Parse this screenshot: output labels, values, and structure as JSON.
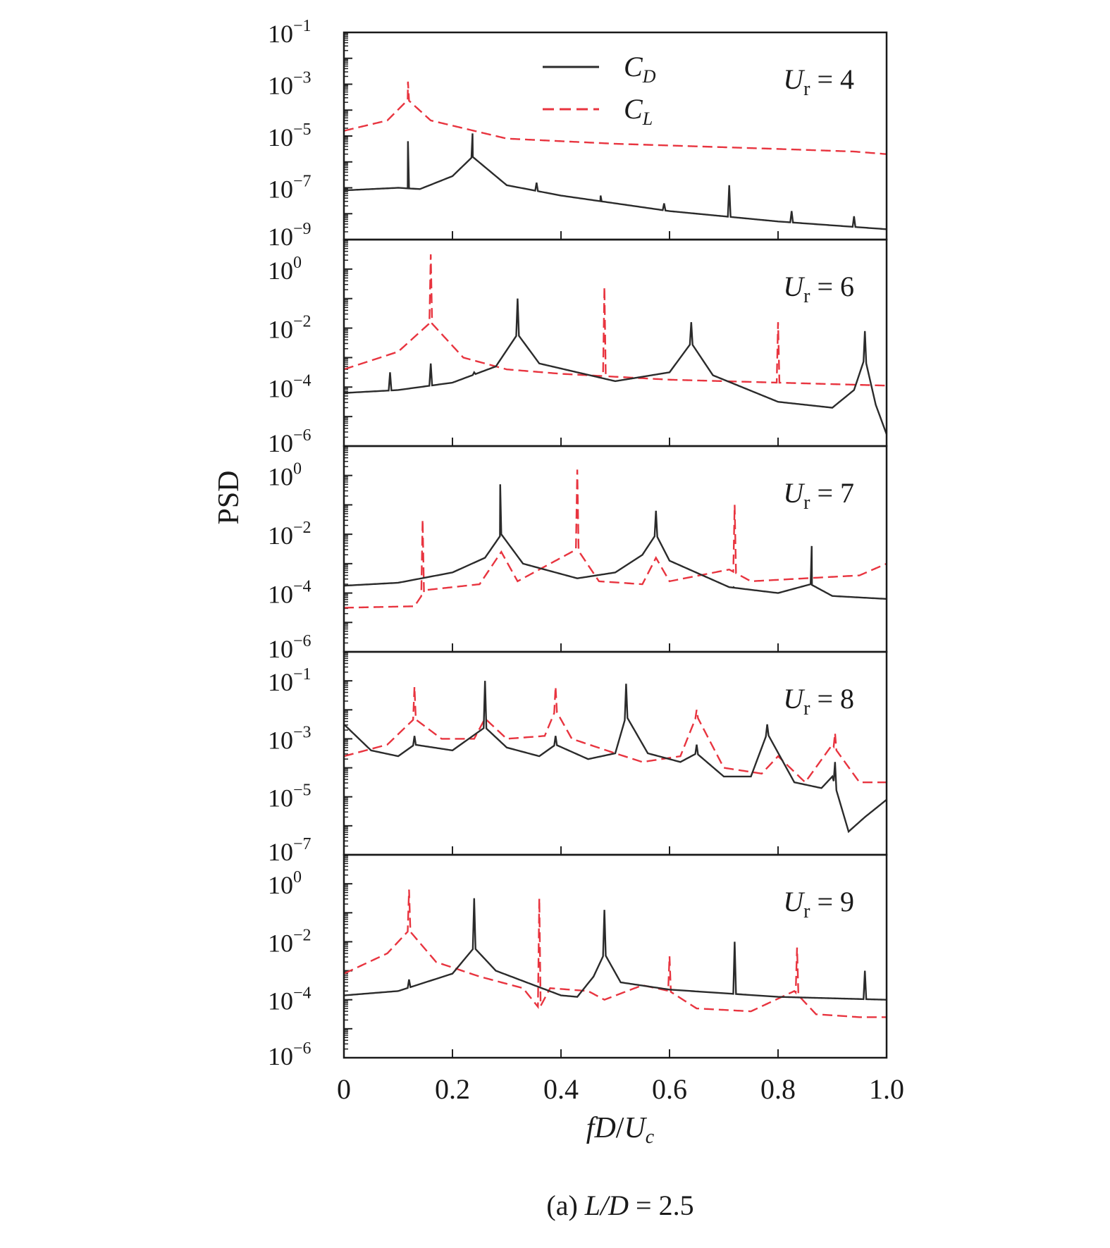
{
  "chart_data": {
    "type": "line",
    "caption_prefix": "(a) ",
    "caption_var": "L/D",
    "caption_value": " = 2.5",
    "ylabel": "PSD",
    "xlabel": {
      "f": "f",
      "D": "D",
      "slash": "/",
      "U": "U",
      "sub": "c"
    },
    "xlim": [
      0,
      1.0
    ],
    "x_ticks": [
      0,
      0.2,
      0.4,
      0.6,
      0.8,
      1.0
    ],
    "x_tick_labels": [
      "0",
      "0.2",
      "0.4",
      "0.6",
      "0.8",
      "1.0"
    ],
    "legend": [
      {
        "main": "C",
        "sub": "D",
        "color": "#2b2b2b",
        "dash": false
      },
      {
        "main": "C",
        "sub": "L",
        "color": "#e8343f",
        "dash": true
      }
    ],
    "panels": [
      {
        "label_var": "U",
        "label_sub": "r",
        "label_value": " = 4",
        "ylim_exp": [
          -9,
          -1
        ],
        "y_ticks": [
          {
            "base": "10",
            "exp": "−1",
            "e": -1
          },
          {
            "base": "10",
            "exp": "−3",
            "e": -3
          },
          {
            "base": "10",
            "exp": "−5",
            "e": -5
          },
          {
            "base": "10",
            "exp": "−7",
            "e": -7
          },
          {
            "base": "10",
            "exp": "−9",
            "e": -9
          }
        ],
        "CD": {
          "base": [
            [
              0.0,
              -7.1
            ],
            [
              0.1,
              -7.0
            ],
            [
              0.14,
              -7.05
            ],
            [
              0.2,
              -6.55
            ],
            [
              0.237,
              -5.8
            ],
            [
              0.3,
              -6.9
            ],
            [
              0.4,
              -7.3
            ],
            [
              0.6,
              -7.9
            ],
            [
              0.8,
              -8.3
            ],
            [
              1.0,
              -8.6
            ]
          ],
          "peaks": [
            [
              0.118,
              -5.2
            ],
            [
              0.237,
              -4.9
            ],
            [
              0.355,
              -6.8
            ],
            [
              0.473,
              -7.3
            ],
            [
              0.59,
              -7.6
            ],
            [
              0.71,
              -6.9
            ],
            [
              0.825,
              -7.9
            ],
            [
              0.94,
              -8.1
            ]
          ]
        },
        "CL": {
          "base": [
            [
              0.0,
              -4.8
            ],
            [
              0.08,
              -4.4
            ],
            [
              0.118,
              -3.6
            ],
            [
              0.16,
              -4.4
            ],
            [
              0.3,
              -5.1
            ],
            [
              0.5,
              -5.3
            ],
            [
              0.8,
              -5.5
            ],
            [
              0.94,
              -5.6
            ],
            [
              1.0,
              -5.7
            ]
          ],
          "peaks": [
            [
              0.118,
              -2.9
            ]
          ]
        }
      },
      {
        "label_var": "U",
        "label_sub": "r",
        "label_value": " = 6",
        "ylim_exp": [
          -6,
          1
        ],
        "y_ticks": [
          {
            "base": "10",
            "exp": "0",
            "e": 0
          },
          {
            "base": "10",
            "exp": "−2",
            "e": -2
          },
          {
            "base": "10",
            "exp": "−4",
            "e": -4
          },
          {
            "base": "10",
            "exp": "−6",
            "e": -6
          }
        ],
        "CD": {
          "base": [
            [
              0.0,
              -4.2
            ],
            [
              0.1,
              -4.1
            ],
            [
              0.2,
              -3.85
            ],
            [
              0.28,
              -3.3
            ],
            [
              0.32,
              -2.2
            ],
            [
              0.36,
              -3.2
            ],
            [
              0.5,
              -3.8
            ],
            [
              0.6,
              -3.5
            ],
            [
              0.64,
              -2.5
            ],
            [
              0.68,
              -3.6
            ],
            [
              0.8,
              -4.5
            ],
            [
              0.9,
              -4.7
            ],
            [
              0.94,
              -4.1
            ],
            [
              0.96,
              -3.0
            ],
            [
              0.98,
              -4.6
            ],
            [
              1.0,
              -5.6
            ]
          ],
          "peaks": [
            [
              0.085,
              -3.5
            ],
            [
              0.16,
              -3.2
            ],
            [
              0.24,
              -3.5
            ],
            [
              0.32,
              -1.0
            ],
            [
              0.48,
              -4.1
            ],
            [
              0.64,
              -1.8
            ],
            [
              0.8,
              -4.7
            ],
            [
              0.96,
              -2.1
            ]
          ]
        },
        "CL": {
          "base": [
            [
              0.0,
              -3.4
            ],
            [
              0.1,
              -2.8
            ],
            [
              0.16,
              -1.8
            ],
            [
              0.22,
              -3.0
            ],
            [
              0.3,
              -3.4
            ],
            [
              0.4,
              -3.55
            ],
            [
              0.6,
              -3.75
            ],
            [
              0.8,
              -3.85
            ],
            [
              1.0,
              -3.95
            ]
          ],
          "peaks": [
            [
              0.16,
              0.5
            ],
            [
              0.48,
              -0.6
            ],
            [
              0.8,
              -1.8
            ]
          ]
        }
      },
      {
        "label_var": "U",
        "label_sub": "r",
        "label_value": " = 7",
        "ylim_exp": [
          -6,
          1
        ],
        "y_ticks": [
          {
            "base": "10",
            "exp": "0",
            "e": 0
          },
          {
            "base": "10",
            "exp": "−2",
            "e": -2
          },
          {
            "base": "10",
            "exp": "−4",
            "e": -4
          },
          {
            "base": "10",
            "exp": "−6",
            "e": -6
          }
        ],
        "CD": {
          "base": [
            [
              0.0,
              -3.75
            ],
            [
              0.1,
              -3.65
            ],
            [
              0.2,
              -3.3
            ],
            [
              0.26,
              -2.8
            ],
            [
              0.29,
              -2.0
            ],
            [
              0.33,
              -3.0
            ],
            [
              0.43,
              -3.5
            ],
            [
              0.5,
              -3.3
            ],
            [
              0.55,
              -2.7
            ],
            [
              0.575,
              -2.0
            ],
            [
              0.6,
              -2.9
            ],
            [
              0.71,
              -3.8
            ],
            [
              0.8,
              -4.0
            ],
            [
              0.86,
              -3.7
            ],
            [
              0.9,
              -4.1
            ],
            [
              1.0,
              -4.2
            ]
          ],
          "peaks": [
            [
              0.145,
              -3.6
            ],
            [
              0.288,
              -0.3
            ],
            [
              0.43,
              -3.6
            ],
            [
              0.575,
              -1.2
            ],
            [
              0.718,
              -3.8
            ],
            [
              0.862,
              -2.4
            ]
          ]
        },
        "CL": {
          "base": [
            [
              0.0,
              -4.5
            ],
            [
              0.13,
              -4.45
            ],
            [
              0.15,
              -3.9
            ],
            [
              0.25,
              -3.7
            ],
            [
              0.29,
              -2.6
            ],
            [
              0.32,
              -3.6
            ],
            [
              0.43,
              -2.5
            ],
            [
              0.47,
              -3.6
            ],
            [
              0.55,
              -3.7
            ],
            [
              0.575,
              -2.8
            ],
            [
              0.6,
              -3.6
            ],
            [
              0.71,
              -3.2
            ],
            [
              0.75,
              -3.6
            ],
            [
              0.85,
              -3.5
            ],
            [
              0.95,
              -3.4
            ],
            [
              1.0,
              -3.0
            ]
          ],
          "peaks": [
            [
              0.145,
              -1.5
            ],
            [
              0.43,
              0.2
            ],
            [
              0.72,
              -1.0
            ],
            [
              1.0,
              -3.0
            ]
          ]
        }
      },
      {
        "label_var": "U",
        "label_sub": "r",
        "label_value": " = 8",
        "ylim_exp": [
          -7,
          0
        ],
        "y_ticks": [
          {
            "base": "10",
            "exp": "−1",
            "e": -1
          },
          {
            "base": "10",
            "exp": "−3",
            "e": -3
          },
          {
            "base": "10",
            "exp": "−5",
            "e": -5
          },
          {
            "base": "10",
            "exp": "−7",
            "e": -7
          }
        ],
        "CD": {
          "base": [
            [
              0.0,
              -2.5
            ],
            [
              0.05,
              -3.4
            ],
            [
              0.1,
              -3.6
            ],
            [
              0.13,
              -3.2
            ],
            [
              0.2,
              -3.4
            ],
            [
              0.26,
              -2.6
            ],
            [
              0.3,
              -3.3
            ],
            [
              0.36,
              -3.6
            ],
            [
              0.39,
              -3.2
            ],
            [
              0.45,
              -3.7
            ],
            [
              0.5,
              -3.5
            ],
            [
              0.52,
              -2.2
            ],
            [
              0.56,
              -3.5
            ],
            [
              0.62,
              -3.8
            ],
            [
              0.65,
              -3.5
            ],
            [
              0.7,
              -4.3
            ],
            [
              0.75,
              -4.3
            ],
            [
              0.78,
              -2.8
            ],
            [
              0.83,
              -4.5
            ],
            [
              0.88,
              -4.7
            ],
            [
              0.9,
              -4.3
            ],
            [
              0.93,
              -6.2
            ],
            [
              0.96,
              -5.7
            ],
            [
              1.0,
              -5.1
            ]
          ],
          "peaks": [
            [
              0.13,
              -2.9
            ],
            [
              0.26,
              -1.0
            ],
            [
              0.39,
              -2.9
            ],
            [
              0.52,
              -1.1
            ],
            [
              0.65,
              -3.2
            ],
            [
              0.78,
              -2.5
            ],
            [
              0.905,
              -3.8
            ]
          ]
        },
        "CL": {
          "base": [
            [
              0.0,
              -3.6
            ],
            [
              0.08,
              -3.2
            ],
            [
              0.13,
              -2.3
            ],
            [
              0.18,
              -3.0
            ],
            [
              0.24,
              -3.0
            ],
            [
              0.26,
              -2.3
            ],
            [
              0.3,
              -3.0
            ],
            [
              0.37,
              -2.9
            ],
            [
              0.39,
              -2.0
            ],
            [
              0.42,
              -3.0
            ],
            [
              0.5,
              -3.5
            ],
            [
              0.55,
              -3.8
            ],
            [
              0.62,
              -3.6
            ],
            [
              0.65,
              -2.2
            ],
            [
              0.7,
              -4.0
            ],
            [
              0.77,
              -4.2
            ],
            [
              0.8,
              -3.6
            ],
            [
              0.85,
              -4.5
            ],
            [
              0.9,
              -3.2
            ],
            [
              0.95,
              -4.5
            ],
            [
              1.0,
              -4.5
            ]
          ],
          "peaks": [
            [
              0.13,
              -1.2
            ],
            [
              0.39,
              -1.2
            ],
            [
              0.65,
              -2.0
            ],
            [
              0.905,
              -2.8
            ]
          ]
        }
      },
      {
        "label_var": "U",
        "label_sub": "r",
        "label_value": " = 9",
        "ylim_exp": [
          -6,
          1
        ],
        "y_ticks": [
          {
            "base": "10",
            "exp": "0",
            "e": 0
          },
          {
            "base": "10",
            "exp": "−2",
            "e": -2
          },
          {
            "base": "10",
            "exp": "−4",
            "e": -4
          },
          {
            "base": "10",
            "exp": "−6",
            "e": -6
          }
        ],
        "CD": {
          "base": [
            [
              0.0,
              -3.85
            ],
            [
              0.1,
              -3.7
            ],
            [
              0.2,
              -3.1
            ],
            [
              0.24,
              -2.2
            ],
            [
              0.28,
              -3.0
            ],
            [
              0.4,
              -3.85
            ],
            [
              0.43,
              -3.9
            ],
            [
              0.46,
              -3.2
            ],
            [
              0.48,
              -2.4
            ],
            [
              0.51,
              -3.4
            ],
            [
              0.6,
              -3.65
            ],
            [
              0.8,
              -3.9
            ],
            [
              1.0,
              -4.0
            ]
          ],
          "peaks": [
            [
              0.12,
              -3.3
            ],
            [
              0.24,
              -0.5
            ],
            [
              0.48,
              -0.9
            ],
            [
              0.72,
              -2.0
            ],
            [
              0.96,
              -3.0
            ]
          ]
        },
        "CL": {
          "base": [
            [
              0.0,
              -3.1
            ],
            [
              0.08,
              -2.4
            ],
            [
              0.12,
              -1.6
            ],
            [
              0.17,
              -2.7
            ],
            [
              0.25,
              -3.2
            ],
            [
              0.33,
              -3.6
            ],
            [
              0.36,
              -4.3
            ],
            [
              0.38,
              -3.6
            ],
            [
              0.45,
              -3.7
            ],
            [
              0.48,
              -4.0
            ],
            [
              0.55,
              -3.5
            ],
            [
              0.6,
              -3.7
            ],
            [
              0.65,
              -4.3
            ],
            [
              0.75,
              -4.4
            ],
            [
              0.83,
              -3.7
            ],
            [
              0.87,
              -4.5
            ],
            [
              0.95,
              -4.6
            ],
            [
              1.0,
              -4.6
            ]
          ],
          "peaks": [
            [
              0.12,
              -0.2
            ],
            [
              0.36,
              -0.5
            ],
            [
              0.6,
              -2.5
            ],
            [
              0.835,
              -2.2
            ]
          ]
        }
      }
    ]
  }
}
